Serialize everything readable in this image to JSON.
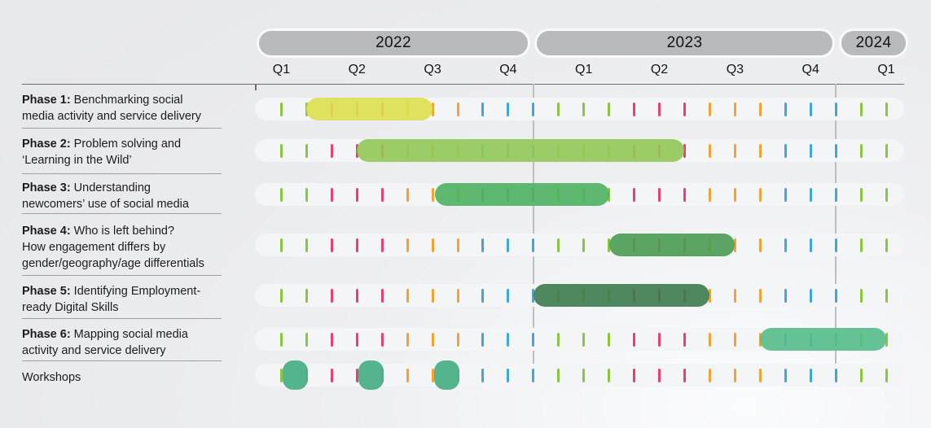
{
  "timeline": {
    "years": [
      {
        "label": "2022",
        "quarters": [
          "Q1",
          "Q2",
          "Q3",
          "Q4"
        ]
      },
      {
        "label": "2023",
        "quarters": [
          "Q1",
          "Q2",
          "Q3",
          "Q4"
        ]
      },
      {
        "label": "2024",
        "quarters": [
          "Q1"
        ]
      }
    ],
    "tick_colors": {
      "g": "#8cc63f",
      "p": "#ee3e6e",
      "o": "#f5a233",
      "b": "#3fa7dd"
    },
    "tick_pattern": [
      "g",
      "g",
      "p",
      "p",
      "p",
      "o",
      "o",
      "o",
      "b",
      "b",
      "b",
      "g",
      "g",
      "g",
      "p",
      "p",
      "p",
      "o",
      "o",
      "o",
      "b",
      "b",
      "b",
      "g",
      "g"
    ]
  },
  "rows": [
    {
      "id": "phase-1",
      "label": {
        "bold": "Phase 1:",
        "lines": [
          " Benchmarking social",
          "media activity and service delivery"
        ]
      },
      "bar": {
        "m0": 2,
        "m1": 7,
        "color": "#dde04e",
        "period": "Apr 2022 – Aug 2022"
      }
    },
    {
      "id": "phase-2",
      "label": {
        "bold": "Phase 2:",
        "lines": [
          " Problem solving and",
          "‘Learning in the Wild’"
        ]
      },
      "bar": {
        "m0": 4,
        "m1": 17,
        "color": "#92c857",
        "period": "Jun 2022 – Jun 2023"
      }
    },
    {
      "id": "phase-3",
      "label": {
        "bold": "Phase 3:",
        "lines": [
          " Understanding",
          "newcomers’ use of social media"
        ]
      },
      "bar": {
        "m0": 7.1,
        "m1": 14,
        "color": "#4eb15f",
        "period": "Sep 2022 – Mar 2023"
      }
    },
    {
      "id": "phase-4",
      "label": {
        "bold": "Phase 4:",
        "lines": [
          " Who is left behind?",
          "How engagement differs by",
          "gender/geography/age differentials"
        ]
      },
      "bar": {
        "m0": 14,
        "m1": 19,
        "color": "#4a9b52",
        "period": "Apr 2023 – Aug 2023"
      }
    },
    {
      "id": "phase-5",
      "label": {
        "bold": "Phase 5:",
        "lines": [
          " Identifying Employment-",
          "ready Digital Skills"
        ]
      },
      "bar": {
        "m0": 11,
        "m1": 18,
        "color": "#3d7b4d",
        "period": "Jan 2023 – Jul 2023"
      }
    },
    {
      "id": "phase-6",
      "label": {
        "bold": "Phase 6:",
        "lines": [
          " Mapping social media",
          "activity and service delivery"
        ]
      },
      "bar": {
        "m0": 20,
        "m1": 25,
        "color": "#55bc89",
        "period": "Oct 2023 – Feb 2024"
      }
    },
    {
      "id": "workshops",
      "label": {
        "bold": "",
        "lines": [
          "Workshops"
        ]
      },
      "dots": {
        "months": [
          1,
          4,
          7
        ],
        "color": "#4bb088",
        "periods": [
          "Mar 2022",
          "Jun 2022",
          "Sep 2022"
        ]
      }
    }
  ],
  "chart_data": {
    "type": "bar",
    "subtype": "gantt-timeline",
    "title": "",
    "x_axis": {
      "unit": "months",
      "range": [
        "2022 Q1",
        "2024 Q1"
      ],
      "years": [
        {
          "label": "2022",
          "quarters": [
            "Q1",
            "Q2",
            "Q3",
            "Q4"
          ]
        },
        {
          "label": "2023",
          "quarters": [
            "Q1",
            "Q2",
            "Q3",
            "Q4"
          ]
        },
        {
          "label": "2024",
          "quarters": [
            "Q1"
          ]
        }
      ],
      "month_tick_colors_by_quarter": {
        "Q1": "#8cc63f",
        "Q2": "#ee3e6e",
        "Q3": "#f5a233",
        "Q4": "#3fa7dd"
      },
      "year_divider_lines": [
        "2022/2023",
        "2023/2024"
      ]
    },
    "categories": [
      "Phase 1: Benchmarking social media activity and service delivery",
      "Phase 2: Problem solving and ‘Learning in the Wild’",
      "Phase 3: Understanding newcomers’ use of social media",
      "Phase 4: Who is left behind? How engagement differs by gender/geography/age differentials",
      "Phase 5: Identifying Employment-ready Digital Skills",
      "Phase 6: Mapping social media activity and service delivery",
      "Workshops"
    ],
    "series": [
      {
        "name": "Phase 1",
        "start": "2022 Apr",
        "end": "2022 Aug",
        "color": "#dde04e"
      },
      {
        "name": "Phase 2",
        "start": "2022 Jun",
        "end": "2023 Jun",
        "color": "#92c857"
      },
      {
        "name": "Phase 3",
        "start": "2022 Sep",
        "end": "2023 Mar",
        "color": "#4eb15f"
      },
      {
        "name": "Phase 4",
        "start": "2023 Apr",
        "end": "2023 Aug",
        "color": "#4a9b52"
      },
      {
        "name": "Phase 5",
        "start": "2023 Jan",
        "end": "2023 Jul",
        "color": "#3d7b4d"
      },
      {
        "name": "Phase 6",
        "start": "2023 Oct",
        "end": "2024 Feb",
        "color": "#55bc89"
      },
      {
        "name": "Workshops",
        "events": [
          "2022 Mar",
          "2022 Jun",
          "2022 Sep"
        ],
        "color": "#4bb088"
      }
    ],
    "legend_position": "none",
    "grid": "year dividers only"
  }
}
